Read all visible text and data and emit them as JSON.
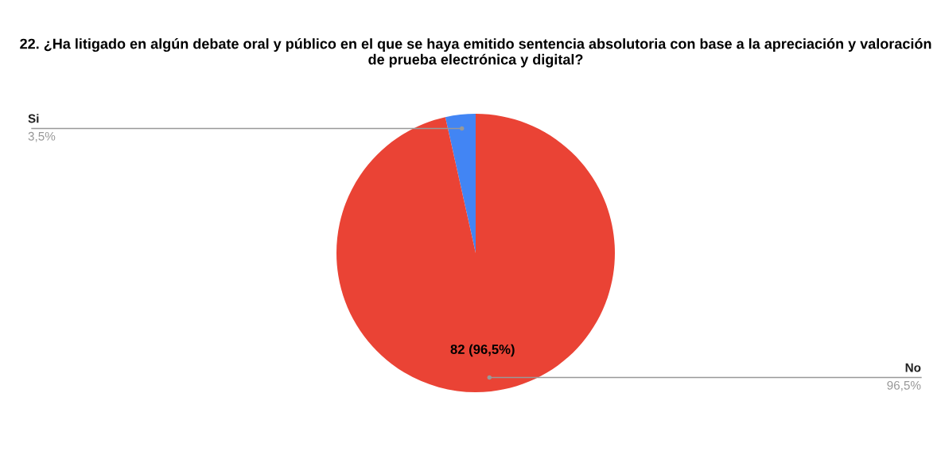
{
  "chart_data": {
    "type": "pie",
    "title": "22. ¿Ha litigado en algún debate oral y público en el que se haya emitido sentencia absolutoria con base a la apreciación y valoración de prueba electrónica y digital?",
    "categories": [
      "Si",
      "No"
    ],
    "values": [
      3.5,
      96.5
    ],
    "colors": [
      "#4285f4",
      "#ea4335"
    ],
    "value_labels": [
      null,
      "82 (96,5%)"
    ],
    "annotations": [
      "3,5%",
      "96,5%"
    ]
  }
}
